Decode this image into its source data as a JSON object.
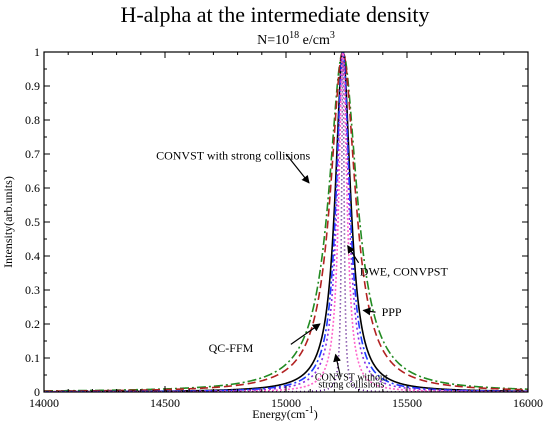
{
  "chart_data": {
    "type": "line",
    "title": "H-alpha at the intermediate density",
    "subtitle_prefix": "N=10",
    "subtitle_exp": "18",
    "subtitle_unit": " e/cm",
    "subtitle_unit_exp": "3",
    "xlabel_main": "Energy(cm",
    "xlabel_exp": "-1",
    "xlabel_close": ")",
    "ylabel": "Intensity(arb.units)",
    "xlim": [
      14000,
      16000
    ],
    "ylim": [
      0,
      1
    ],
    "xticks": [
      "14000",
      "14500",
      "15000",
      "15500",
      "16000"
    ],
    "yticks": [
      "0",
      "0.1",
      "0.2",
      "0.3",
      "0.4",
      "0.5",
      "0.6",
      "0.7",
      "0.8",
      "0.9",
      "1"
    ],
    "center": 15235,
    "series": [
      {
        "name": "CONVST with strong collisions",
        "color": "#228b22",
        "dash": "9,3,2,3",
        "hwhm": 70
      },
      {
        "name": "PPP",
        "color": "#b22222",
        "dash": "8,4",
        "hwhm": 62
      },
      {
        "name": "DWE, CONVPST",
        "color": "#000000",
        "dash": "",
        "hwhm": 38
      },
      {
        "name": "QC-FFM",
        "color": "#1e3cff",
        "dash": "8,3,2,3",
        "hwhm": 33
      },
      {
        "name": "",
        "color": "#8a2be2",
        "dash": "2,3",
        "hwhm": 28
      },
      {
        "name": "",
        "color": "#ff66cc",
        "dash": "2,2",
        "hwhm": 20
      },
      {
        "name": "CONVST without strong collisions",
        "color": "#4b0082",
        "dash": "1,3",
        "hwhm": 6
      }
    ],
    "annotations": [
      {
        "text": "CONVST with strong collisions",
        "x": 15100,
        "y": 0.695
      },
      {
        "text": "DWE, CONVPST",
        "x": 15305,
        "y": 0.355
      },
      {
        "text": "PPP",
        "x": 15395,
        "y": 0.235
      },
      {
        "text": "QC-FFM",
        "x": 14865,
        "y": 0.13
      },
      {
        "text": "CONVST without",
        "x": 15270,
        "y": 0.045
      },
      {
        "text": "strong collisions",
        "x": 15270,
        "y": 0.025
      }
    ],
    "arrows": [
      {
        "from": [
          15000,
          0.7
        ],
        "to": [
          15095,
          0.615
        ]
      },
      {
        "from": [
          15300,
          0.38
        ],
        "to": [
          15255,
          0.43
        ]
      },
      {
        "from": [
          15370,
          0.235
        ],
        "to": [
          15320,
          0.24
        ]
      },
      {
        "from": [
          15020,
          0.14
        ],
        "to": [
          15140,
          0.2
        ]
      },
      {
        "from": [
          15225,
          0.045
        ],
        "to": [
          15205,
          0.11
        ]
      }
    ]
  }
}
